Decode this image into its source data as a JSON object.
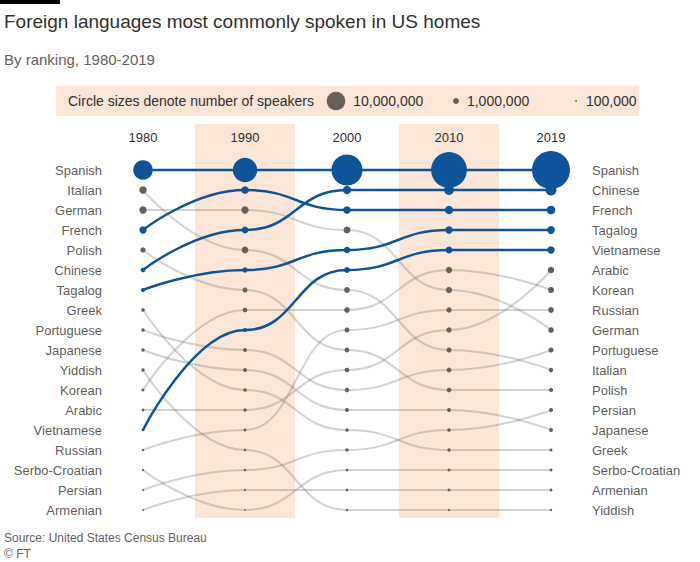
{
  "chart_data": {
    "type": "bump",
    "title": "Foreign languages most commonly spoken in US homes",
    "subtitle": "By ranking, 1980-2019",
    "size_legend": {
      "title": "Circle sizes denote number of speakers",
      "values": [
        10000000,
        1000000,
        100000
      ],
      "labels": [
        "10,000,000",
        "1,000,000",
        "100,000"
      ]
    },
    "categories": [
      "1980",
      "1990",
      "2000",
      "2010",
      "2019"
    ],
    "ylim": [
      1,
      18
    ],
    "grid": false,
    "tick_labels": "x",
    "marker": "circle",
    "series": [
      {
        "name": "Spanish",
        "color": "#0f5499",
        "line_style": "solid",
        "values": [
          1,
          1,
          1,
          1,
          1
        ],
        "speakers": [
          11100000,
          17300000,
          28100000,
          37000000,
          41800000
        ]
      },
      {
        "name": "Italian",
        "color": "#66605c",
        "line_style": "faint",
        "values": [
          2,
          5,
          7,
          10,
          11
        ],
        "speakers": [
          1620000,
          1310000,
          1000000,
          730000,
          550000
        ]
      },
      {
        "name": "German",
        "color": "#66605c",
        "line_style": "faint",
        "values": [
          3,
          3,
          4,
          7,
          9
        ],
        "speakers": [
          1590000,
          1550000,
          1380000,
          1080000,
          900000
        ]
      },
      {
        "name": "French",
        "color": "#0f5499",
        "line_style": "solid",
        "values": [
          4,
          2,
          3,
          3,
          3
        ],
        "speakers": [
          1550000,
          1700000,
          1640000,
          2000000,
          2100000
        ]
      },
      {
        "name": "Polish",
        "color": "#66605c",
        "line_style": "faint",
        "values": [
          5,
          7,
          10,
          12,
          12
        ],
        "speakers": [
          820000,
          720000,
          670000,
          610000,
          530000
        ]
      },
      {
        "name": "Chinese",
        "color": "#0f5499",
        "line_style": "solid",
        "values": [
          6,
          4,
          2,
          2,
          2
        ],
        "speakers": [
          630000,
          1320000,
          2020000,
          2810000,
          3500000
        ]
      },
      {
        "name": "Tagalog",
        "color": "#0f5499",
        "line_style": "solid",
        "values": [
          7,
          6,
          5,
          4,
          4
        ],
        "speakers": [
          450000,
          840000,
          1220000,
          1590000,
          1760000
        ]
      },
      {
        "name": "Greek",
        "color": "#66605c",
        "line_style": "faint",
        "values": [
          8,
          12,
          14,
          15,
          15
        ],
        "speakers": [
          400000,
          390000,
          370000,
          300000,
          270000
        ]
      },
      {
        "name": "Portuguese",
        "color": "#66605c",
        "line_style": "faint",
        "values": [
          9,
          10,
          12,
          11,
          10
        ],
        "speakers": [
          350000,
          430000,
          560000,
          690000,
          770000
        ]
      },
      {
        "name": "Japanese",
        "color": "#66605c",
        "line_style": "faint",
        "values": [
          10,
          11,
          13,
          13,
          14
        ],
        "speakers": [
          340000,
          420000,
          480000,
          440000,
          450000
        ]
      },
      {
        "name": "Yiddish",
        "color": "#66605c",
        "line_style": "faint",
        "values": [
          11,
          15,
          18,
          18,
          18
        ],
        "speakers": [
          320000,
          210000,
          180000,
          150000,
          160000
        ]
      },
      {
        "name": "Korean",
        "color": "#66605c",
        "line_style": "faint",
        "values": [
          12,
          8,
          8,
          6,
          7
        ],
        "speakers": [
          270000,
          630000,
          890000,
          1140000,
          1080000
        ]
      },
      {
        "name": "Arabic",
        "color": "#66605c",
        "line_style": "faint",
        "values": [
          13,
          13,
          11,
          9,
          6
        ],
        "speakers": [
          220000,
          360000,
          610000,
          840000,
          1260000
        ]
      },
      {
        "name": "Vietnamese",
        "color": "#0f5499",
        "line_style": "solid",
        "values": [
          14,
          9,
          6,
          5,
          5
        ],
        "speakers": [
          200000,
          510000,
          1010000,
          1380000,
          1570000
        ]
      },
      {
        "name": "Russian",
        "color": "#66605c",
        "line_style": "faint",
        "values": [
          15,
          14,
          9,
          8,
          8
        ],
        "speakers": [
          170000,
          240000,
          710000,
          850000,
          940000
        ]
      },
      {
        "name": "Serbo-Croatian",
        "color": "#66605c",
        "line_style": "faint",
        "values": [
          16,
          18,
          16,
          16,
          16
        ],
        "speakers": [
          150000,
          70000,
          230000,
          270000,
          250000
        ]
      },
      {
        "name": "Persian",
        "color": "#66605c",
        "line_style": "faint",
        "values": [
          17,
          16,
          15,
          14,
          13
        ],
        "speakers": [
          110000,
          200000,
          310000,
          380000,
          480000
        ]
      },
      {
        "name": "Armenian",
        "color": "#66605c",
        "line_style": "faint",
        "values": [
          18,
          17,
          17,
          17,
          17
        ],
        "speakers": [
          100000,
          150000,
          200000,
          240000,
          240000
        ]
      }
    ],
    "source": "Source: United States Census Bureau",
    "credit": "© FT"
  }
}
